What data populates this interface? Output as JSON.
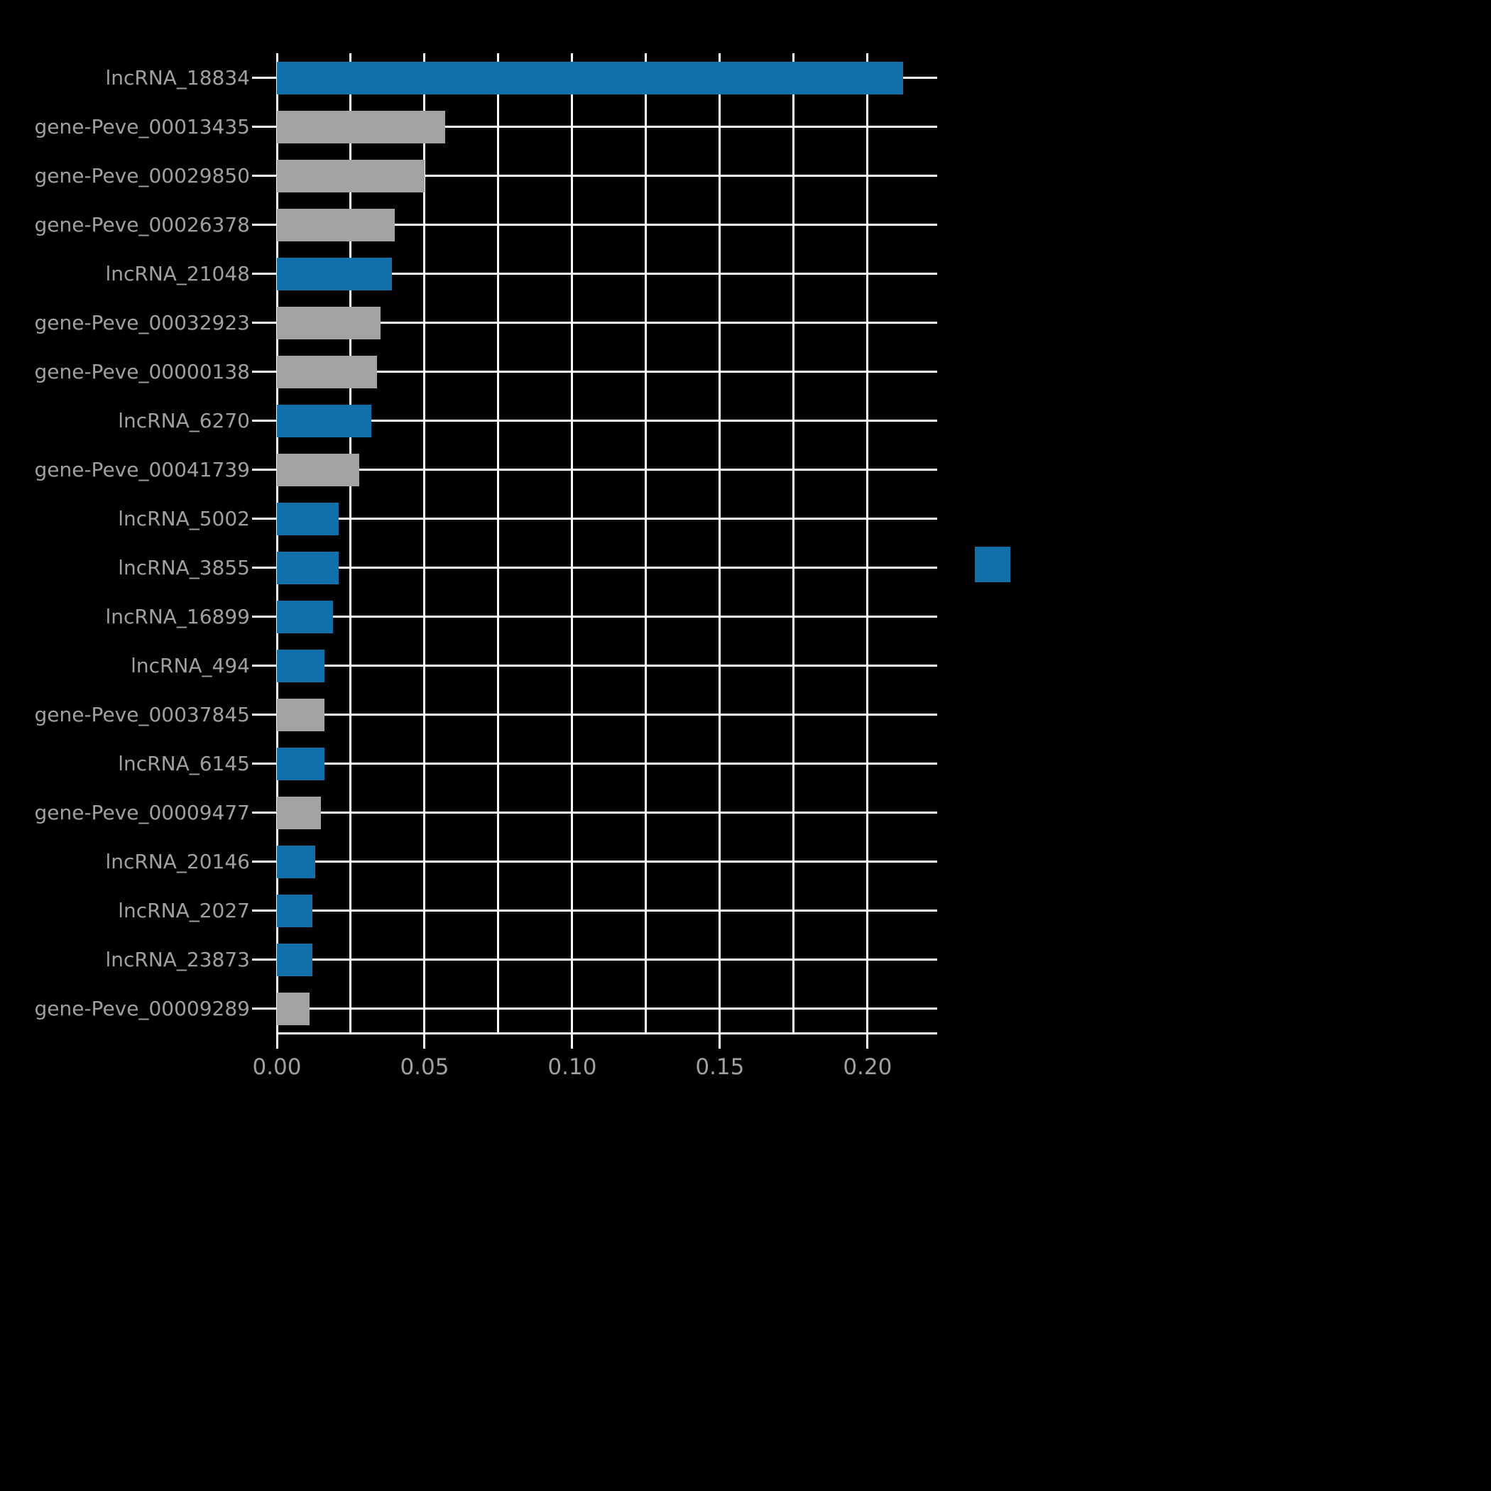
{
  "figure": {
    "background": "#000000",
    "grid_color": "#ffffff",
    "text_color": "#a0a0a0"
  },
  "legend": {
    "swatch_color": "#1170aa"
  },
  "chart_data": {
    "type": "bar",
    "orientation": "horizontal",
    "title": "",
    "xlabel": "",
    "ylabel": "",
    "xlim": [
      0,
      0.2236
    ],
    "xticks": [
      0.0,
      0.05,
      0.1,
      0.15,
      0.2
    ],
    "xtick_labels": [
      "0.00",
      "0.05",
      "0.10",
      "0.15",
      "0.20"
    ],
    "grid_step": 0.025,
    "grid": true,
    "legend_position": "right",
    "palette": {
      "lncRNA": "#1170aa",
      "gene": "#a3a3a3"
    },
    "items": [
      {
        "label": "lncRNA_18834",
        "value": 0.212,
        "group": "lncRNA"
      },
      {
        "label": "gene-Peve_00013435",
        "value": 0.057,
        "group": "gene"
      },
      {
        "label": "gene-Peve_00029850",
        "value": 0.05,
        "group": "gene"
      },
      {
        "label": "gene-Peve_00026378",
        "value": 0.04,
        "group": "gene"
      },
      {
        "label": "lncRNA_21048",
        "value": 0.039,
        "group": "lncRNA"
      },
      {
        "label": "gene-Peve_00032923",
        "value": 0.035,
        "group": "gene"
      },
      {
        "label": "gene-Peve_00000138",
        "value": 0.034,
        "group": "gene"
      },
      {
        "label": "lncRNA_6270",
        "value": 0.032,
        "group": "lncRNA"
      },
      {
        "label": "gene-Peve_00041739",
        "value": 0.028,
        "group": "gene"
      },
      {
        "label": "lncRNA_5002",
        "value": 0.021,
        "group": "lncRNA"
      },
      {
        "label": "lncRNA_3855",
        "value": 0.021,
        "group": "lncRNA"
      },
      {
        "label": "lncRNA_16899",
        "value": 0.019,
        "group": "lncRNA"
      },
      {
        "label": "lncRNA_494",
        "value": 0.016,
        "group": "lncRNA"
      },
      {
        "label": "gene-Peve_00037845",
        "value": 0.016,
        "group": "gene"
      },
      {
        "label": "lncRNA_6145",
        "value": 0.016,
        "group": "lncRNA"
      },
      {
        "label": "gene-Peve_00009477",
        "value": 0.015,
        "group": "gene"
      },
      {
        "label": "lncRNA_20146",
        "value": 0.013,
        "group": "lncRNA"
      },
      {
        "label": "lncRNA_2027",
        "value": 0.012,
        "group": "lncRNA"
      },
      {
        "label": "lncRNA_23873",
        "value": 0.012,
        "group": "lncRNA"
      },
      {
        "label": "gene-Peve_00009289",
        "value": 0.011,
        "group": "gene"
      }
    ]
  }
}
